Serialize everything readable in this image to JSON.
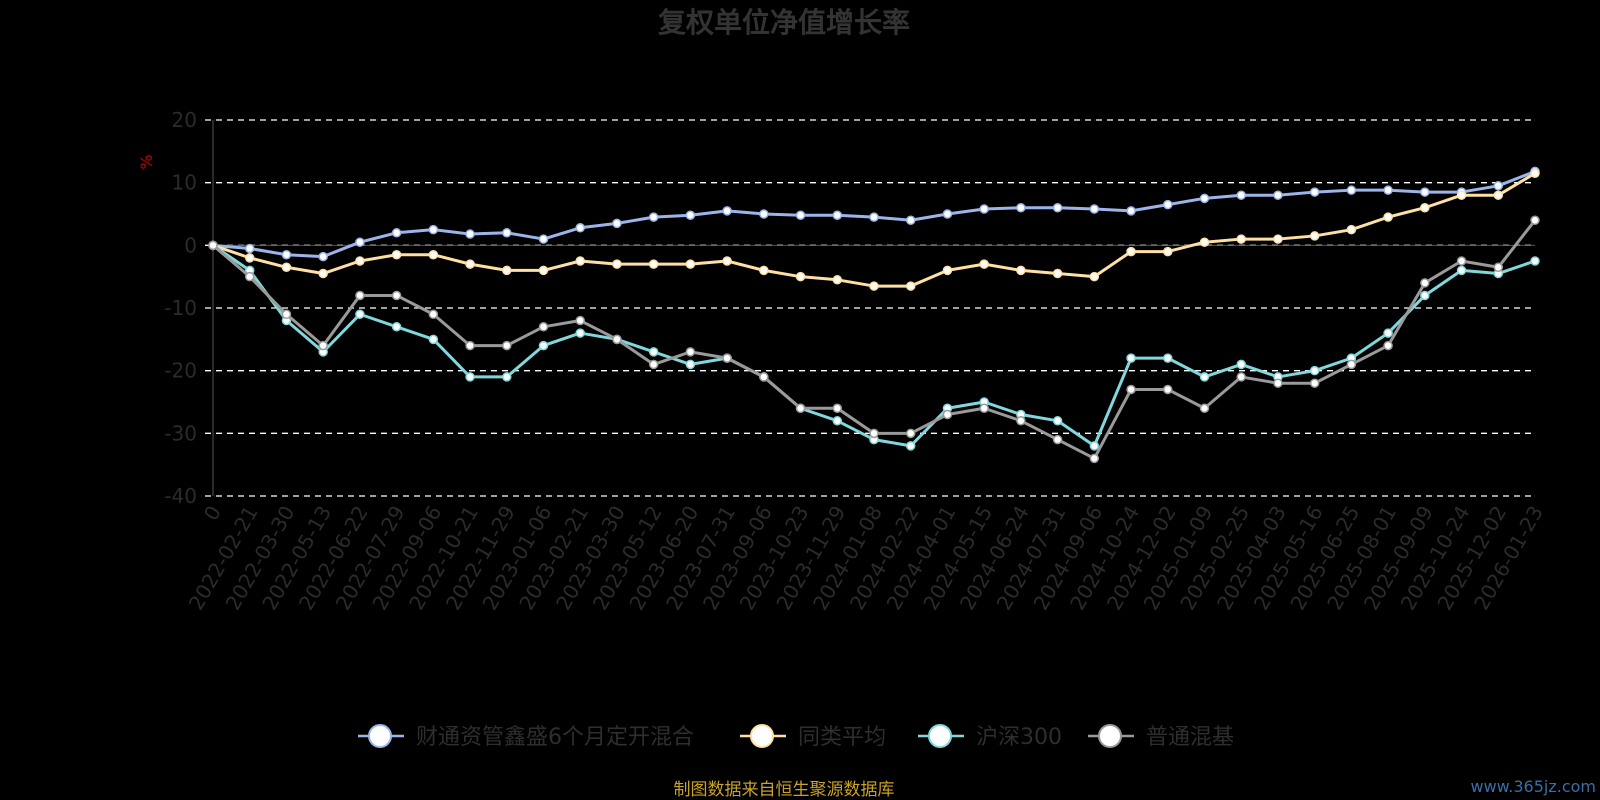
{
  "chart_data": {
    "type": "line",
    "title": "复权单位净值增长率",
    "ylabel": "%",
    "ylim": [
      -40,
      20
    ],
    "yticks": [
      "20",
      "10",
      "0",
      "-10",
      "-20",
      "-30",
      "-40"
    ],
    "y_tick_values": [
      20,
      10,
      0,
      -10,
      -20,
      -30,
      -40
    ],
    "x_tick_labels": [
      "0",
      "2022-02-21",
      "2022-03-30",
      "2022-05-13",
      "2022-06-22",
      "2022-07-29",
      "2022-09-06",
      "2022-10-21",
      "2022-11-29",
      "2023-01-06",
      "2023-02-21",
      "2023-03-30",
      "2023-05-12",
      "2023-06-20",
      "2023-07-31",
      "2023-09-06",
      "2023-10-23",
      "2023-11-29",
      "2024-01-08",
      "2024-02-22",
      "2024-04-01",
      "2024-05-15",
      "2024-06-24",
      "2024-07-31",
      "2024-09-06",
      "2024-10-24",
      "2024-12-02",
      "2025-01-09",
      "2025-02-25",
      "2025-04-03",
      "2025-05-16",
      "2025-06-25",
      "2025-08-01",
      "2025-09-09",
      "2025-10-24",
      "2025-12-02",
      "2026-01-23"
    ],
    "x": [
      "0",
      "2022-02-21",
      "2022-03-30",
      "2022-05-13",
      "2022-06-22",
      "2022-07-29",
      "2022-09-06",
      "2022-10-21",
      "2022-11-29",
      "2023-01-06",
      "2023-02-21",
      "2023-03-30",
      "2023-05-12",
      "2023-06-20",
      "2023-07-31",
      "2023-09-06",
      "2023-10-23",
      "2023-11-29",
      "2024-01-08",
      "2024-02-22",
      "2024-04-01",
      "2024-05-15",
      "2024-06-24",
      "2024-07-31",
      "2024-09-06",
      "2024-10-24",
      "2024-12-02",
      "2025-01-09",
      "2025-02-25",
      "2025-04-03",
      "2025-05-16",
      "2025-06-25",
      "2025-08-01",
      "2025-09-09",
      "2025-10-24",
      "2025-12-02",
      "2026-01-23"
    ],
    "grid": true,
    "legend_position": "bottom",
    "series": [
      {
        "name": "财通资管鑫盛6个月定开混合",
        "color": "#9bb5ea",
        "values": [
          0,
          -0.5,
          -1.5,
          -1.8,
          0.5,
          2.0,
          2.5,
          1.8,
          2.0,
          1.0,
          2.8,
          3.5,
          4.5,
          4.8,
          5.5,
          5.0,
          4.8,
          4.8,
          4.5,
          4.0,
          5.0,
          5.8,
          6.0,
          6.0,
          5.8,
          5.5,
          6.5,
          7.5,
          8.0,
          8.0,
          8.5,
          8.8,
          8.8,
          8.5,
          8.5,
          9.5,
          11.8
        ]
      },
      {
        "name": "同类平均",
        "color": "#ffe0a3",
        "values": [
          0,
          -2.0,
          -3.5,
          -4.5,
          -2.5,
          -1.5,
          -1.5,
          -3.0,
          -4.0,
          -4.0,
          -2.5,
          -3.0,
          -3.0,
          -3.0,
          -2.5,
          -4.0,
          -5.0,
          -5.5,
          -6.5,
          -6.5,
          -4.0,
          -3.0,
          -4.0,
          -4.5,
          -5.0,
          -1.0,
          -1.0,
          0.5,
          1.0,
          1.0,
          1.5,
          2.5,
          4.5,
          6.0,
          8.0,
          8.0,
          11.5
        ]
      },
      {
        "name": "沪深300",
        "color": "#80d8dd",
        "values": [
          0,
          -4.0,
          -12.0,
          -17.0,
          -11.0,
          -13.0,
          -15.0,
          -21.0,
          -21.0,
          -16.0,
          -14.0,
          -15.0,
          -17.0,
          -19.0,
          -18.0,
          -21.0,
          -26.0,
          -28.0,
          -31.0,
          -32.0,
          -26.0,
          -25.0,
          -27.0,
          -28.0,
          -32.0,
          -18.0,
          -18.0,
          -21.0,
          -19.0,
          -21.0,
          -20.0,
          -18.0,
          -14.0,
          -8.0,
          -4.0,
          -4.5,
          -2.5
        ]
      },
      {
        "name": "普通混基",
        "color": "#9a9a9a",
        "values": [
          0,
          -5.0,
          -11.0,
          -16.0,
          -8.0,
          -8.0,
          -11.0,
          -16.0,
          -16.0,
          -13.0,
          -12.0,
          -15.0,
          -19.0,
          -17.0,
          -18.0,
          -21.0,
          -26.0,
          -26.0,
          -30.0,
          -30.0,
          -27.0,
          -26.0,
          -28.0,
          -31.0,
          -34.0,
          -23.0,
          -23.0,
          -26.0,
          -21.0,
          -22.0,
          -22.0,
          -19.0,
          -16.0,
          -6.0,
          -2.5,
          -3.5,
          4.0
        ]
      }
    ]
  },
  "source_text": "制图数据来自恒生聚源数据库",
  "watermark": "www.365jz.com"
}
